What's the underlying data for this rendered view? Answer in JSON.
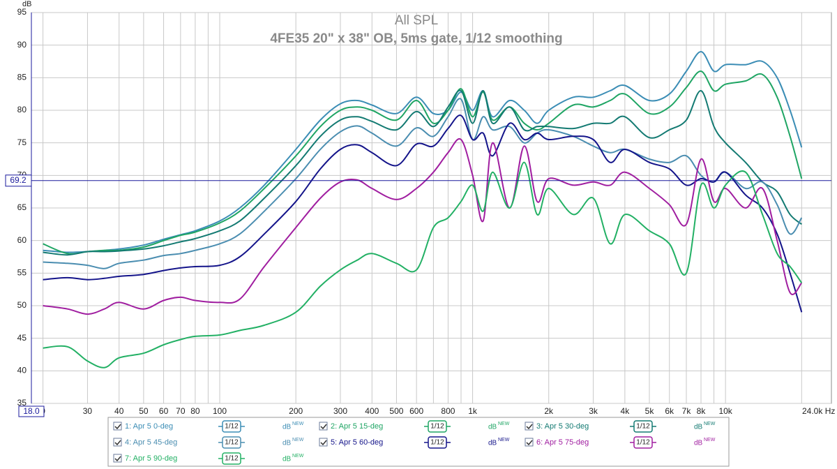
{
  "chart_data": {
    "type": "line",
    "title": "All SPL",
    "subtitle": "4FE35 20\" x 38\" OB, 5ms gate, 1/12 smoothing",
    "y_label": "dB",
    "log_x": true,
    "grid": true,
    "xlim": [
      18,
      24000
    ],
    "ylim": [
      35,
      95
    ],
    "yticks": [
      35,
      40,
      45,
      50,
      55,
      60,
      65,
      70,
      75,
      80,
      85,
      90,
      95
    ],
    "xticks": [
      {
        "value": 20,
        "label": "0"
      },
      30,
      40,
      50,
      60,
      70,
      80,
      100,
      200,
      300,
      400,
      500,
      600,
      800,
      {
        "value": 1000,
        "label": "1k"
      },
      {
        "value": 2000,
        "label": "2k"
      },
      {
        "value": 3000,
        "label": "3k"
      },
      {
        "value": 4000,
        "label": "4k"
      },
      {
        "value": 5000,
        "label": "5k"
      },
      {
        "value": 6000,
        "label": "6k"
      },
      {
        "value": 7000,
        "label": "7k"
      },
      {
        "value": 8000,
        "label": "8k"
      },
      {
        "value": 10000,
        "label": "10k"
      }
    ],
    "xminor": [
      90,
      700,
      900,
      9000,
      20000
    ],
    "x_end_label": "24.0k Hz",
    "cursor": {
      "x": {
        "value": 18,
        "label": "18.0"
      },
      "y": 69.2,
      "color": "#1a1a9c"
    },
    "legend_smoothing": "1/12",
    "legend_unit": "dB",
    "legend_unit_tag": "NEW",
    "x": [
      20,
      25,
      30,
      35,
      40,
      50,
      60,
      70,
      80,
      100,
      120,
      150,
      200,
      250,
      300,
      350,
      400,
      500,
      600,
      700,
      800,
      900,
      1000,
      1100,
      1200,
      1400,
      1600,
      1800,
      2000,
      2500,
      3000,
      3500,
      4000,
      5000,
      6000,
      7000,
      8000,
      9000,
      10000,
      12000,
      14000,
      16000,
      18000,
      20000
    ],
    "series": [
      {
        "name": "1: Apr 5 0-deg",
        "color": "#3b8db5",
        "values": [
          58.5,
          58.2,
          58.3,
          58.5,
          58.7,
          59.3,
          60.2,
          60.9,
          61.5,
          63,
          65,
          68.5,
          74,
          78.5,
          81,
          81.5,
          80.8,
          79.5,
          82,
          79.5,
          80,
          82.8,
          80,
          83,
          79,
          81.5,
          80,
          78,
          80,
          82,
          82,
          83,
          83.8,
          81.5,
          82.5,
          86,
          89,
          86,
          87,
          87,
          87.5,
          85,
          80,
          74.3
        ]
      },
      {
        "name": "2: Apr 5 15-deg",
        "color": "#1fa564",
        "values": [
          59.5,
          58,
          58.3,
          58.5,
          58.5,
          59,
          60,
          60.8,
          61.3,
          62.7,
          64.5,
          68,
          73,
          77.5,
          80,
          80.5,
          80,
          78.5,
          81.5,
          78,
          80,
          83.3,
          79,
          82.8,
          78.5,
          80.5,
          78,
          77,
          78,
          80.8,
          80.5,
          81.5,
          82.5,
          79.5,
          80.5,
          83.5,
          86,
          83,
          84,
          84.5,
          85.5,
          82,
          76,
          69.5
        ]
      },
      {
        "name": "3: Apr 5 30-deg",
        "color": "#137a72",
        "values": [
          58.2,
          57.8,
          58.3,
          58.3,
          58.4,
          58.7,
          59.2,
          59.8,
          60.3,
          61.5,
          63,
          66.5,
          71.5,
          76,
          78.5,
          79,
          78.3,
          77,
          79.8,
          77.5,
          80.5,
          83,
          78,
          83,
          78,
          80.5,
          77,
          77.5,
          77.5,
          77.2,
          78,
          78,
          79,
          75.8,
          77,
          78.5,
          83,
          77.5,
          75,
          72,
          69,
          67.5,
          64,
          62.5
        ]
      },
      {
        "name": "4: Apr 5 45-deg",
        "color": "#4a8db0",
        "values": [
          56.7,
          56.5,
          56.2,
          55.7,
          56.5,
          57,
          57.7,
          58,
          58.5,
          59.5,
          61,
          64.5,
          69.5,
          74,
          76.7,
          77.6,
          76.5,
          74.5,
          77.3,
          76,
          79,
          81.7,
          75.5,
          79,
          77,
          77.5,
          75,
          76.5,
          77,
          76,
          74.5,
          73.5,
          74,
          72.5,
          72,
          73,
          70,
          69,
          70.5,
          68,
          69,
          65.5,
          61,
          63.5
        ]
      },
      {
        "name": "5: Apr 5 60-deg",
        "color": "#14148a",
        "values": [
          54,
          54.3,
          54,
          54.2,
          54.5,
          54.8,
          55.4,
          55.8,
          56,
          56.2,
          57.5,
          61,
          66,
          71,
          74,
          74.7,
          73.5,
          71.5,
          74.8,
          74.5,
          77.2,
          79.2,
          75.5,
          76.5,
          73,
          78,
          75.5,
          76.5,
          75.5,
          76,
          75.5,
          72,
          74,
          72,
          71,
          68.5,
          69.5,
          69,
          70.5,
          67,
          65,
          61,
          55,
          49
        ]
      },
      {
        "name": "6: Apr 5 75-deg",
        "color": "#a01ea0",
        "values": [
          50,
          49.5,
          48.7,
          49.5,
          50.5,
          49.5,
          50.8,
          51.3,
          50.8,
          50.5,
          51,
          56,
          62,
          66.5,
          69,
          69.3,
          68,
          66.3,
          68,
          70.5,
          73.5,
          75.5,
          70,
          63,
          75,
          65,
          74.5,
          66,
          69.5,
          68.5,
          69,
          68.5,
          70.5,
          68,
          65.5,
          62.5,
          72.5,
          66,
          68,
          65,
          68,
          60,
          52,
          53.5
        ]
      },
      {
        "name": "7: Apr 5 90-deg",
        "color": "#22b064",
        "values": [
          43.5,
          43.7,
          41.5,
          40.5,
          42,
          42.7,
          44,
          44.8,
          45.3,
          45.5,
          46.2,
          47,
          49,
          53,
          55.5,
          57,
          58,
          56.5,
          55.5,
          62,
          63.5,
          66,
          68.5,
          64.5,
          70.5,
          65,
          72,
          64,
          68,
          64,
          66.5,
          59.5,
          64,
          61.5,
          59.5,
          55,
          68.5,
          65,
          68.5,
          70.5,
          64,
          58,
          56,
          53.5
        ]
      }
    ]
  }
}
